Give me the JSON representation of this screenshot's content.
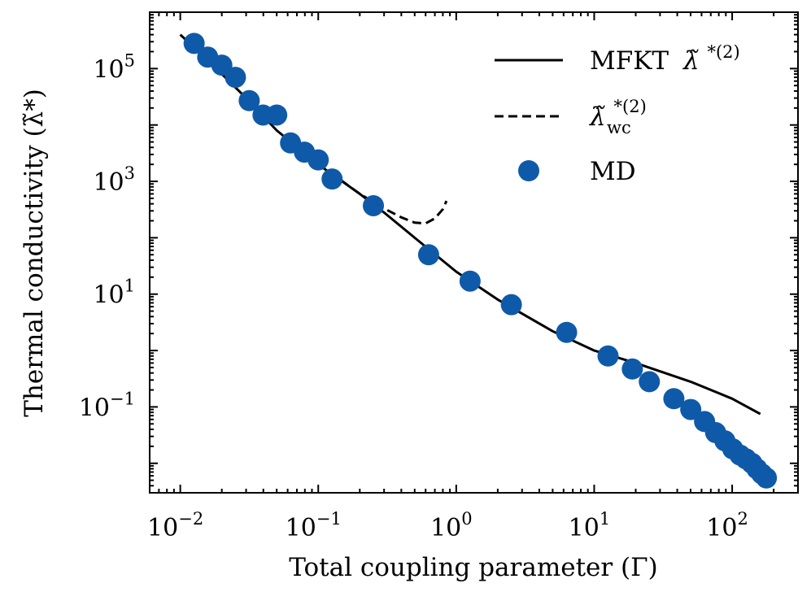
{
  "chart_data": {
    "type": "scatter",
    "xlabel": "Total coupling parameter (Γ)",
    "ylabel": "Thermal conductivity (λ̃*)",
    "xscale": "log",
    "yscale": "log",
    "xlim": [
      0.006,
      300
    ],
    "ylim": [
      0.003,
      1000000
    ],
    "x_ticks": [
      {
        "value": 0.01,
        "base": "10",
        "exp": "−2"
      },
      {
        "value": 0.1,
        "base": "10",
        "exp": "−1"
      },
      {
        "value": 1,
        "base": "10",
        "exp": "0"
      },
      {
        "value": 10,
        "base": "10",
        "exp": "1"
      },
      {
        "value": 100,
        "base": "10",
        "exp": "2"
      }
    ],
    "y_ticks": [
      {
        "value": 0.1,
        "base": "10",
        "exp": "−1"
      },
      {
        "value": 10,
        "base": "10",
        "exp": "1"
      },
      {
        "value": 1000,
        "base": "10",
        "exp": "3"
      },
      {
        "value": 100000,
        "base": "10",
        "exp": "5"
      }
    ],
    "legend": {
      "placement": "top-right",
      "entries": [
        {
          "label": "MFKT",
          "math": "λ̃",
          "sup": "*(2)",
          "sub": "",
          "style": "solid"
        },
        {
          "label": "",
          "math": "λ̃",
          "sup": "*(2)",
          "sub": "wc",
          "style": "dashed"
        },
        {
          "label": "MD",
          "math": "",
          "sup": "",
          "sub": "",
          "style": "marker"
        }
      ]
    },
    "series": [
      {
        "name": "MFKT λ̃*(2)",
        "style": "solid",
        "color": "#000000",
        "x": [
          0.01,
          0.015,
          0.02,
          0.03,
          0.05,
          0.1,
          0.2,
          0.3,
          0.5,
          1,
          2,
          5,
          10,
          20,
          50,
          100,
          160
        ],
        "y": [
          400000,
          160000,
          80000,
          30000,
          8000,
          2000,
          600,
          280,
          100,
          25,
          8,
          2.2,
          1.0,
          0.6,
          0.28,
          0.14,
          0.075
        ]
      },
      {
        "name": "λ̃wc*(2)",
        "style": "dashed",
        "color": "#000000",
        "x": [
          0.1,
          0.15,
          0.2,
          0.3,
          0.4,
          0.5,
          0.6,
          0.7,
          0.8,
          0.85
        ],
        "y": [
          2000,
          1000,
          600,
          330,
          230,
          185,
          180,
          220,
          320,
          450
        ]
      },
      {
        "name": "MD",
        "style": "marker",
        "color": "#0f5aa8",
        "x": [
          0.0126,
          0.0158,
          0.02,
          0.0251,
          0.0316,
          0.0398,
          0.05,
          0.063,
          0.0794,
          0.1,
          0.126,
          0.251,
          0.631,
          1.26,
          2.51,
          6.31,
          12.6,
          18.9,
          25.1,
          37.8,
          50.1,
          63.1,
          75.9,
          88.6,
          101,
          114,
          126,
          139,
          151,
          164,
          177
        ],
        "y": [
          280000,
          160000,
          115000,
          70000,
          27000,
          15000,
          15000,
          4800,
          3300,
          2400,
          1100,
          370,
          50,
          17,
          6.5,
          2.1,
          0.8,
          0.47,
          0.28,
          0.14,
          0.09,
          0.055,
          0.035,
          0.025,
          0.018,
          0.014,
          0.012,
          0.01,
          0.008,
          0.0065,
          0.0055
        ]
      }
    ]
  }
}
